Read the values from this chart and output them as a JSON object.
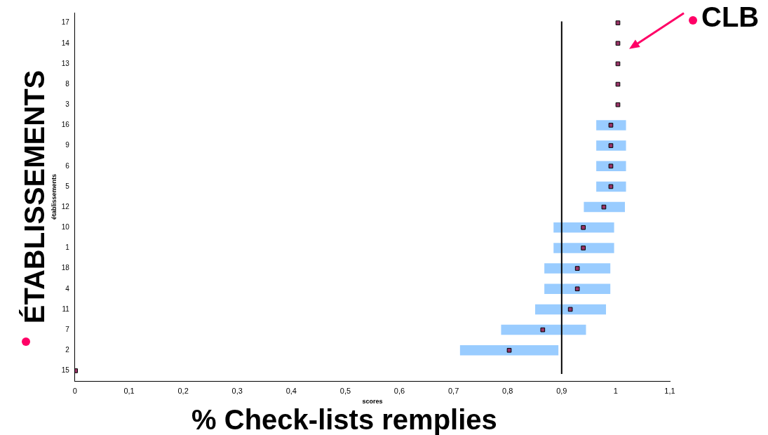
{
  "chart_data": {
    "type": "bar",
    "orientation": "horizontal",
    "xlabel": "scores",
    "ylabel": "établissements",
    "categories": [
      "17",
      "14",
      "13",
      "8",
      "3",
      "16",
      "9",
      "6",
      "5",
      "12",
      "10",
      "1",
      "18",
      "4",
      "11",
      "7",
      "2",
      "15"
    ],
    "series": [
      {
        "color": "#99ccff",
        "base": [
          null,
          null,
          null,
          null,
          null,
          0.964,
          0.964,
          0.964,
          0.964,
          0.941,
          0.885,
          0.885,
          0.868,
          0.868,
          0.851,
          0.788,
          0.712,
          null
        ],
        "values": [
          null,
          null,
          null,
          null,
          null,
          0.055,
          0.055,
          0.055,
          0.055,
          0.076,
          0.112,
          0.112,
          0.122,
          0.122,
          0.131,
          0.157,
          0.182,
          null
        ]
      },
      {
        "type": "scatter",
        "color": "#993366",
        "marker": "square",
        "x": [
          "17",
          "14",
          "13",
          "8",
          "3",
          "16",
          "9",
          "6",
          "5",
          "12",
          "10",
          "1",
          "18",
          "4",
          "11",
          "7",
          "2",
          "15"
        ],
        "values": [
          1.004,
          1.004,
          1.004,
          1.004,
          1.004,
          0.991,
          0.991,
          0.991,
          0.991,
          0.978,
          0.94,
          0.94,
          0.929,
          0.929,
          0.916,
          0.865,
          0.803,
          0.001
        ]
      }
    ],
    "xlim": [
      0,
      1.1
    ],
    "xticks": [
      0,
      {
        "value": 0.1,
        "label": "0,1"
      },
      {
        "value": 0.2,
        "label": "0,2"
      },
      {
        "value": 0.3,
        "label": "0,3"
      },
      {
        "value": 0.4,
        "label": "0,4"
      },
      {
        "value": 0.5,
        "label": "0,5"
      },
      {
        "value": 0.6,
        "label": "0,6"
      },
      {
        "value": 0.7,
        "label": "0,7"
      },
      {
        "value": 0.8,
        "label": "0,8"
      },
      {
        "value": 0.9,
        "label": "0,9"
      },
      1,
      {
        "value": 1.1,
        "label": "1,1"
      }
    ],
    "ref_lines": [
      {
        "axis": "x",
        "value": 0.9,
        "color": "#000000"
      }
    ],
    "annotations": [
      "ÉTABLISSEMENTS",
      "% Check-lists remplies",
      {
        "text": "CLB",
        "x": 1.004,
        "y": "14"
      }
    ],
    "grid": false,
    "legend": false
  }
}
